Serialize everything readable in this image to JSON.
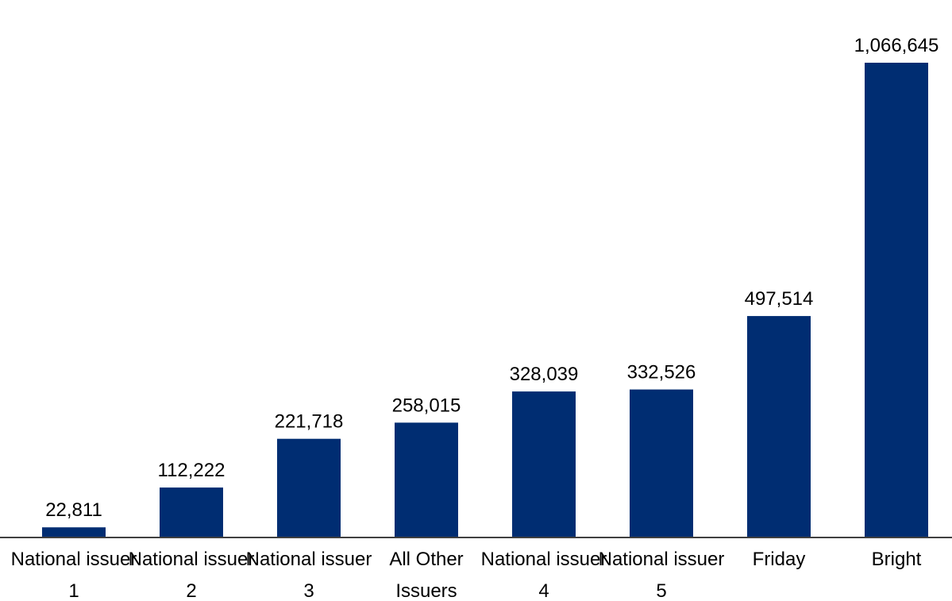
{
  "chart_data": {
    "type": "bar",
    "categories": [
      "National issuer 1",
      "National issuer 2",
      "National issuer 3",
      "All Other Issuers",
      "National issuer 4",
      "National issuer 5",
      "Friday",
      "Bright"
    ],
    "values": [
      22811,
      112222,
      221718,
      258015,
      328039,
      332526,
      497514,
      1066645
    ],
    "value_labels": [
      "22,811",
      "112,222",
      "221,718",
      "258,015",
      "328,039",
      "332,526",
      "497,514",
      "1,066,645"
    ],
    "color": "#002d72"
  }
}
